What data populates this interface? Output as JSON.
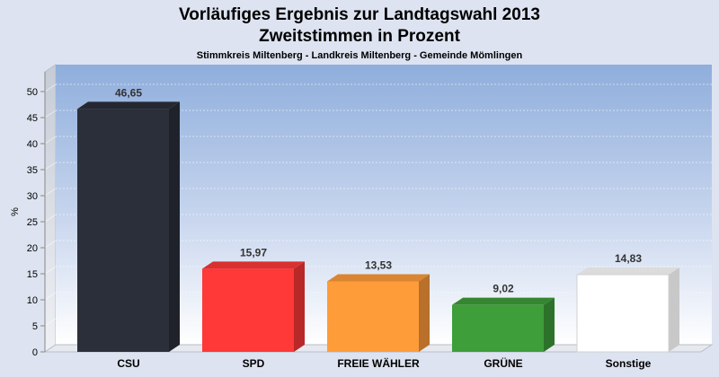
{
  "chart_data": {
    "type": "bar",
    "title": "Vorläufiges Ergebnis zur Landtagswahl 2013",
    "subtitle": "Zweitstimmen in Prozent",
    "caption": "Stimmkreis Miltenberg - Landkreis Miltenberg - Gemeinde Mömlingen",
    "ylabel": "%",
    "ylim": [
      0,
      50
    ],
    "yticks": [
      "0",
      "5",
      "10",
      "15",
      "20",
      "25",
      "30",
      "35",
      "40",
      "45",
      "50"
    ],
    "categories": [
      "CSU",
      "SPD",
      "FREIE WÄHLER",
      "GRÜNE",
      "Sonstige"
    ],
    "values": [
      46.65,
      15.97,
      13.53,
      9.02,
      14.83
    ],
    "value_labels": [
      "46,65",
      "15,97",
      "13,53",
      "9,02",
      "14,83"
    ],
    "colors": [
      "#2b2f3a",
      "#ff3838",
      "#ff9c3a",
      "#3e9e3a",
      "#ffffff"
    ],
    "grid": true,
    "legend": "none"
  }
}
